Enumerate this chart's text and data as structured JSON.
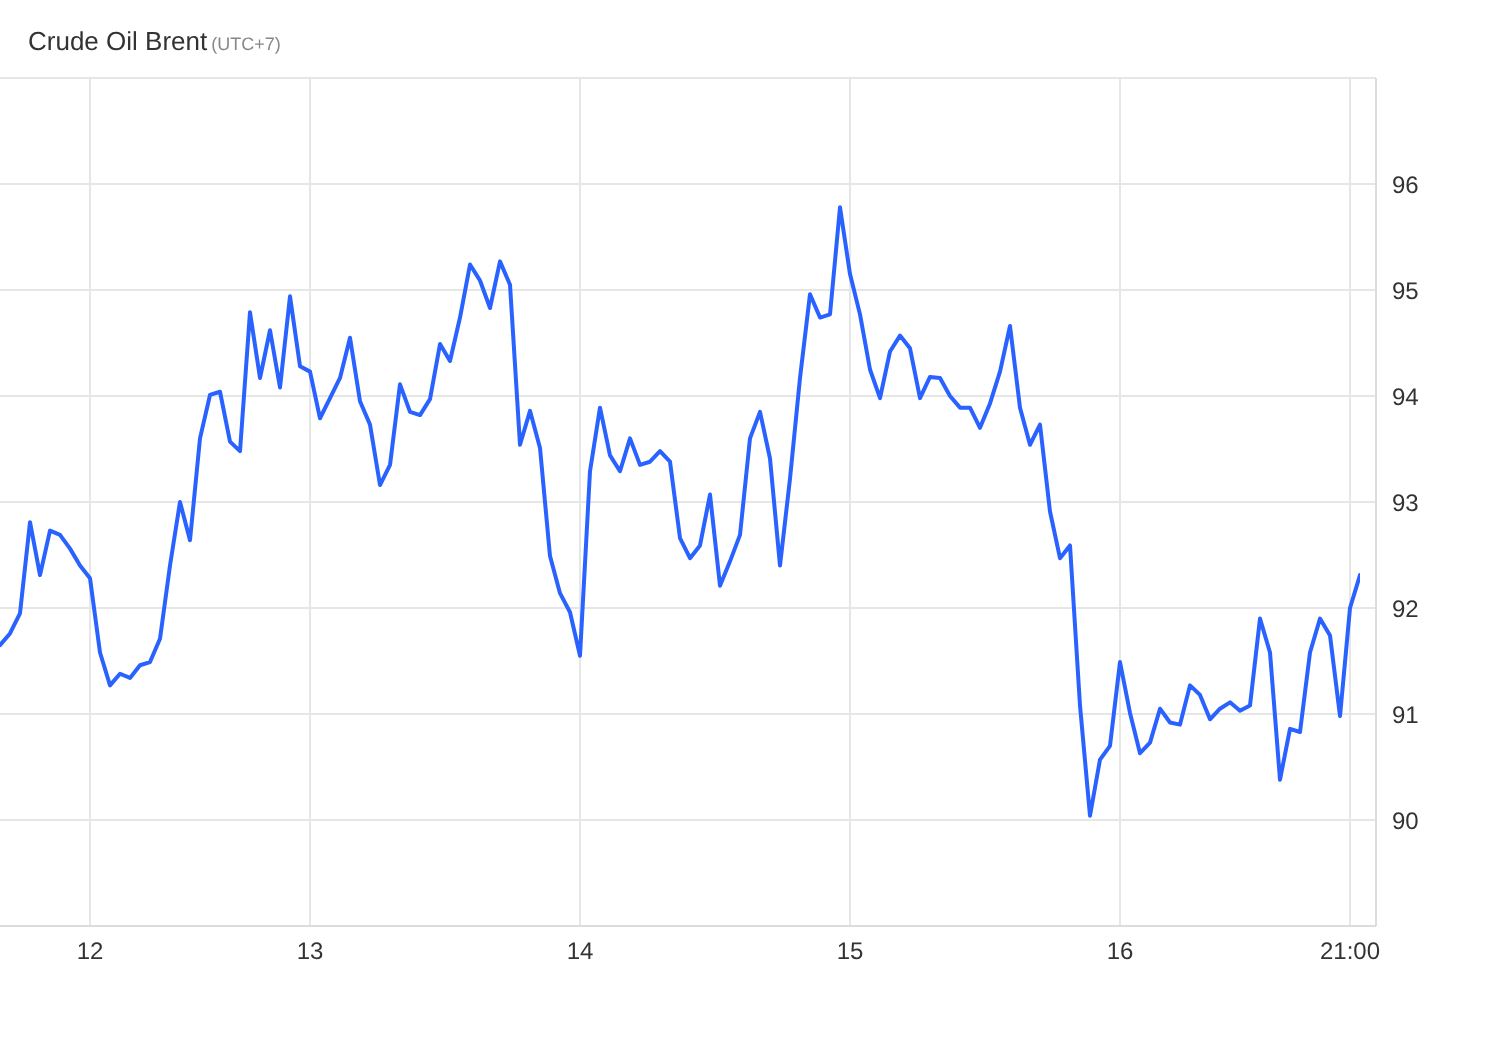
{
  "chart_data": {
    "type": "line",
    "title": "Crude Oil Brent",
    "subtitle": "(UTC+7)",
    "categories": [
      null,
      null,
      null,
      null,
      null,
      null,
      null,
      null,
      null,
      "12",
      null,
      null,
      null,
      null,
      null,
      null,
      null,
      null,
      null,
      null,
      null,
      null,
      null,
      null,
      null,
      null,
      null,
      null,
      null,
      null,
      null,
      "13",
      null,
      null,
      null,
      null,
      null,
      null,
      null,
      null,
      null,
      null,
      null,
      null,
      null,
      null,
      null,
      null,
      null,
      null,
      null,
      null,
      null,
      null,
      null,
      null,
      null,
      null,
      "14",
      null,
      null,
      null,
      null,
      null,
      null,
      null,
      null,
      null,
      null,
      null,
      null,
      null,
      null,
      null,
      null,
      null,
      null,
      null,
      null,
      null,
      null,
      null,
      null,
      null,
      null,
      "15",
      null,
      null,
      null,
      null,
      null,
      null,
      null,
      null,
      null,
      null,
      null,
      null,
      null,
      null,
      null,
      null,
      null,
      null,
      null,
      null,
      null,
      null,
      null,
      null,
      null,
      null,
      "16",
      null,
      null,
      null,
      null,
      null,
      null,
      null,
      null,
      null,
      null,
      null,
      null,
      null,
      null,
      null,
      null,
      null,
      null,
      null,
      null,
      null,
      null,
      "21:00",
      null
    ],
    "values": [
      91.65,
      91.76,
      91.95,
      92.81,
      92.31,
      92.73,
      92.69,
      92.56,
      92.4,
      92.28,
      91.58,
      91.27,
      91.38,
      91.34,
      91.46,
      91.49,
      91.71,
      92.4,
      93.0,
      92.64,
      93.6,
      94.01,
      94.04,
      93.57,
      93.48,
      94.79,
      94.17,
      94.62,
      94.08,
      94.94,
      94.28,
      94.23,
      93.79,
      93.98,
      94.17,
      94.55,
      93.95,
      93.73,
      93.16,
      93.35,
      94.11,
      93.85,
      93.82,
      93.97,
      94.49,
      94.33,
      94.74,
      95.24,
      95.09,
      94.83,
      95.27,
      95.05,
      93.54,
      93.86,
      93.51,
      92.49,
      92.14,
      91.96,
      91.55,
      93.29,
      93.89,
      93.44,
      93.29,
      93.6,
      93.35,
      93.38,
      93.48,
      93.38,
      92.66,
      92.47,
      92.59,
      93.07,
      92.21,
      92.44,
      92.69,
      93.6,
      93.85,
      93.41,
      92.4,
      93.22,
      94.17,
      94.96,
      94.74,
      94.77,
      95.78,
      95.15,
      94.77,
      94.25,
      93.98,
      94.42,
      94.57,
      94.45,
      93.98,
      94.18,
      94.17,
      94.0,
      93.89,
      93.89,
      93.7,
      93.93,
      94.23,
      94.66,
      93.89,
      93.54,
      93.73,
      92.91,
      92.47,
      92.59,
      91.08,
      90.04,
      90.57,
      90.7,
      91.49,
      91.01,
      90.63,
      90.73,
      91.05,
      90.92,
      90.9,
      91.27,
      91.18,
      90.95,
      91.05,
      91.11,
      91.03,
      91.08,
      91.9,
      91.58,
      90.38,
      90.86,
      90.83,
      91.58,
      91.9,
      91.74,
      90.98,
      92.0,
      92.31
    ],
    "color": "#2962ff",
    "ylim": [
      89,
      97
    ],
    "yticks": [
      90,
      91,
      92,
      93,
      94,
      95,
      96
    ],
    "grid": true,
    "marker": "none",
    "line_style": "solid"
  }
}
